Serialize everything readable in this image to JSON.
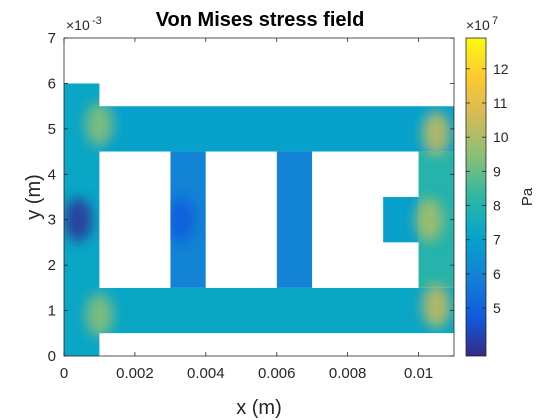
{
  "chart_data": {
    "type": "heatmap",
    "title": "Von Mises stress field",
    "xlabel": "x (m)",
    "ylabel": "y (m)",
    "xlim": [
      0,
      0.011
    ],
    "ylim": [
      0,
      0.007
    ],
    "x_ticks": [
      "0",
      "0.002",
      "0.004",
      "0.006",
      "0.008",
      "0.01"
    ],
    "x_tick_values": [
      0,
      0.002,
      0.004,
      0.006,
      0.008,
      0.01
    ],
    "y_ticks": [
      "0",
      "1",
      "2",
      "3",
      "4",
      "5",
      "6",
      "7"
    ],
    "y_tick_values": [
      0,
      1,
      2,
      3,
      4,
      5,
      6,
      7
    ],
    "y_exponent": {
      "base": "×10",
      "power": "-3"
    },
    "colorbar": {
      "label": "Pa",
      "clim": [
        3.6,
        12.9
      ],
      "ticks": [
        "5",
        "6",
        "7",
        "8",
        "9",
        "10",
        "11",
        "12"
      ],
      "tick_values": [
        5,
        6,
        7,
        8,
        9,
        10,
        11,
        12
      ],
      "exponent": {
        "base": "×10",
        "power": "7"
      },
      "colormap": "parula"
    },
    "regions": [
      {
        "x": [
          0,
          0.001
        ],
        "y": [
          0,
          0.006
        ],
        "value": 7.2
      },
      {
        "x": [
          0.001,
          0.011
        ],
        "y": [
          0.0005,
          0.0015
        ],
        "value": 7.2
      },
      {
        "x": [
          0.001,
          0.011
        ],
        "y": [
          0.0045,
          0.0055
        ],
        "value": 7.0
      },
      {
        "x": [
          0.003,
          0.004
        ],
        "y": [
          0.0015,
          0.0045
        ],
        "value": 6.0
      },
      {
        "x": [
          0.006,
          0.007
        ],
        "y": [
          0.0015,
          0.0045
        ],
        "value": 6.0
      },
      {
        "x": [
          0.01,
          0.011
        ],
        "y": [
          0.0015,
          0.0045
        ],
        "value": 8.0
      },
      {
        "x": [
          0.009,
          0.01
        ],
        "y": [
          0.0025,
          0.0035
        ],
        "value": 7.0
      }
    ],
    "hotspots": [
      {
        "x": 0.0105,
        "y": 0.0011,
        "value": 10.5
      },
      {
        "x": 0.0105,
        "y": 0.0049,
        "value": 10.5
      },
      {
        "x": 0.0103,
        "y": 0.003,
        "value": 10.0
      },
      {
        "x": 0.001,
        "y": 0.0009,
        "value": 9.5
      },
      {
        "x": 0.001,
        "y": 0.0051,
        "value": 9.5
      },
      {
        "x": 0.0004,
        "y": 0.003,
        "value": 3.8
      },
      {
        "x": 0.0033,
        "y": 0.003,
        "value": 4.8
      }
    ]
  }
}
